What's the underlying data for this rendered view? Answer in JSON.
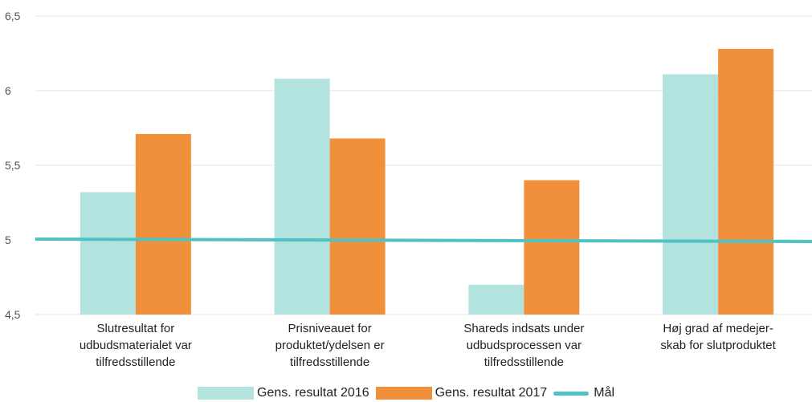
{
  "chart_data": {
    "type": "bar",
    "categories": [
      [
        "Slutresultat for",
        "udbudsmaterialet var",
        "tilfredsstillende"
      ],
      [
        "Prisniveauet for",
        "produktet/ydelsen er",
        "tilfredsstillende"
      ],
      [
        "Shareds indsats under",
        "udbudsprocessen var",
        "tilfredsstillende"
      ],
      [
        "Høj  grad af medejer-",
        "skab for slutproduktet"
      ]
    ],
    "series": [
      {
        "name": "Gens. resultat 2016",
        "values": [
          5.32,
          6.08,
          4.7,
          6.11
        ],
        "color": "#b3e3df"
      },
      {
        "name": "Gens. resultat 2017",
        "values": [
          5.71,
          5.68,
          5.4,
          6.28
        ],
        "color": "#f0903b"
      }
    ],
    "target_line": {
      "name": "Mål",
      "value": 5.0,
      "color": "#4fc3c3"
    },
    "y_ticks": [
      "4,5",
      "5",
      "5,5",
      "6",
      "6,5"
    ],
    "y_tick_values": [
      4.5,
      5.0,
      5.5,
      6.0,
      6.5
    ],
    "ylim": [
      4.5,
      6.5
    ],
    "grid": true,
    "legend_position": "bottom-center",
    "title": "",
    "xlabel": "",
    "ylabel": ""
  }
}
